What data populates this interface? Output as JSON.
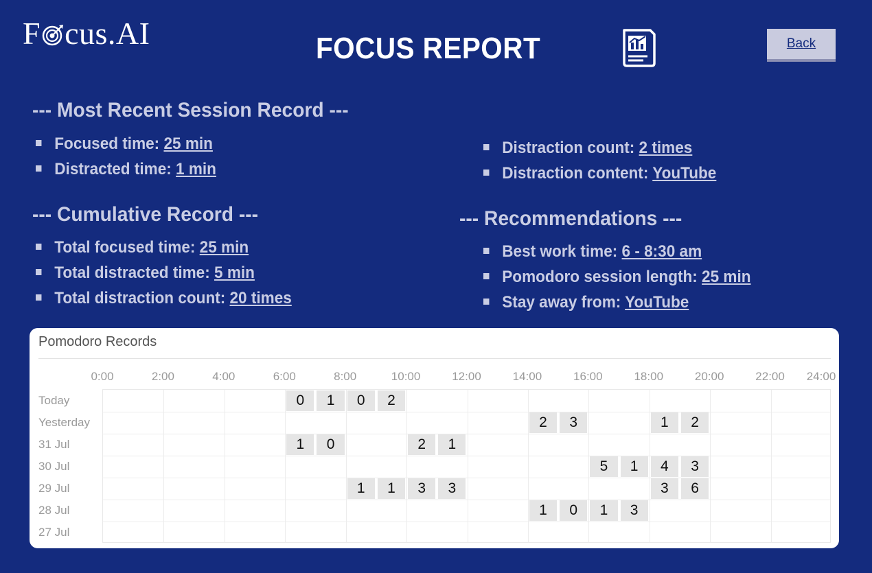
{
  "app": {
    "logo_prefix": "F",
    "logo_suffix": "cus.AI",
    "title": "FOCUS REPORT",
    "back_label": "Back"
  },
  "recent": {
    "heading": "--- Most Recent Session Record ---",
    "focused_label": "Focused time: ",
    "focused_value": "25 min",
    "distracted_label": "Distracted time: ",
    "distracted_value": "1 min",
    "count_label": "Distraction count: ",
    "count_value": "2 times",
    "content_label": "Distraction content: ",
    "content_value": "YouTube"
  },
  "cumulative": {
    "heading": "--- Cumulative Record ---",
    "focused_label": "Total focused time: ",
    "focused_value": "25 min",
    "distracted_label": "Total distracted time: ",
    "distracted_value": "5 min",
    "count_label": "Total distraction count: ",
    "count_value": "20 times"
  },
  "recommendations": {
    "heading": "--- Recommendations ---",
    "best_label": "Best work time: ",
    "best_value": "6 - 8:30 am",
    "pomodoro_label": "Pomodoro session length: ",
    "pomodoro_value": "25 min",
    "stay_label": "Stay away from: ",
    "stay_value": "YouTube"
  },
  "chart_data": {
    "type": "heatmap",
    "title": "Pomodoro Records",
    "x_ticks": [
      "0:00",
      "2:00",
      "4:00",
      "6:00",
      "8:00",
      "10:00",
      "12:00",
      "14:00",
      "16:00",
      "18:00",
      "20:00",
      "22:00",
      "24:00"
    ],
    "x_range": [
      0,
      24
    ],
    "rows": [
      "Today",
      "Yesterday",
      "31 Jul",
      "30 Jul",
      "29 Jul",
      "28 Jul",
      "27 Jul"
    ],
    "grid": true,
    "cells": [
      {
        "row": 0,
        "start": 6,
        "end": 7,
        "label": "0"
      },
      {
        "row": 0,
        "start": 7,
        "end": 8,
        "label": "1"
      },
      {
        "row": 0,
        "start": 8,
        "end": 9,
        "label": "0"
      },
      {
        "row": 0,
        "start": 9,
        "end": 10,
        "label": "2"
      },
      {
        "row": 1,
        "start": 14,
        "end": 15,
        "label": "2"
      },
      {
        "row": 1,
        "start": 15,
        "end": 16,
        "label": "3"
      },
      {
        "row": 1,
        "start": 18,
        "end": 19,
        "label": "1"
      },
      {
        "row": 1,
        "start": 19,
        "end": 20,
        "label": "2"
      },
      {
        "row": 2,
        "start": 6,
        "end": 7,
        "label": "1"
      },
      {
        "row": 2,
        "start": 7,
        "end": 8,
        "label": "0"
      },
      {
        "row": 2,
        "start": 10,
        "end": 11,
        "label": "2"
      },
      {
        "row": 2,
        "start": 11,
        "end": 12,
        "label": "1"
      },
      {
        "row": 3,
        "start": 16,
        "end": 17,
        "label": "5"
      },
      {
        "row": 3,
        "start": 17,
        "end": 18,
        "label": "1"
      },
      {
        "row": 3,
        "start": 18,
        "end": 19,
        "label": "4"
      },
      {
        "row": 3,
        "start": 19,
        "end": 20,
        "label": "3"
      },
      {
        "row": 4,
        "start": 8,
        "end": 9,
        "label": "1"
      },
      {
        "row": 4,
        "start": 9,
        "end": 10,
        "label": "1"
      },
      {
        "row": 4,
        "start": 10,
        "end": 11,
        "label": "3"
      },
      {
        "row": 4,
        "start": 11,
        "end": 12,
        "label": "3"
      },
      {
        "row": 4,
        "start": 18,
        "end": 19,
        "label": "3"
      },
      {
        "row": 4,
        "start": 19,
        "end": 20,
        "label": "6"
      },
      {
        "row": 5,
        "start": 14,
        "end": 15,
        "label": "1"
      },
      {
        "row": 5,
        "start": 15,
        "end": 16,
        "label": "0"
      },
      {
        "row": 5,
        "start": 16,
        "end": 17,
        "label": "1"
      },
      {
        "row": 5,
        "start": 17,
        "end": 18,
        "label": "3"
      }
    ]
  }
}
